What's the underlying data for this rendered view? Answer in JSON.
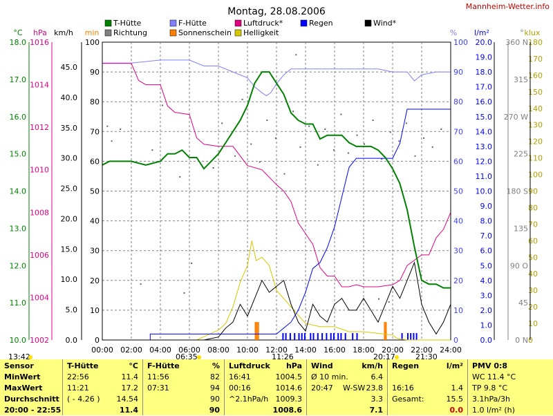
{
  "header": {
    "date": "Montag, 28.08.2006",
    "site": "Mannheim-Wetter.info"
  },
  "legend": [
    {
      "label": "T-Hütte",
      "color": "#008000"
    },
    {
      "label": "Richtung",
      "color": "#808080"
    },
    {
      "label": "F-Hütte",
      "color": "#8080ff"
    },
    {
      "label": "Sonnenschein",
      "color": "#ff8000"
    },
    {
      "label": "Luftdruck*",
      "color": "#e0007f"
    },
    {
      "label": "Helligkeit",
      "color": "#d4c800"
    },
    {
      "label": "Regen",
      "color": "#0000ff"
    },
    {
      "label": "Wind*",
      "color": "#000000"
    }
  ],
  "axis_units": {
    "temp": "°C",
    "press": "hPa",
    "wind": "km/h",
    "sun": "min",
    "hum": "%",
    "rain": "l/m²",
    "dir": "°",
    "lux": "klux"
  },
  "axes": {
    "temp": [
      "18.0",
      "17.0",
      "16.0",
      "15.0",
      "14.0",
      "13.0",
      "12.0",
      "11.0",
      "10.0"
    ],
    "press": [
      "1016",
      "1014",
      "1012",
      "1010",
      "1008",
      "1006",
      "1004",
      "1002"
    ],
    "wind": [
      "45.0",
      "40.0",
      "35.0",
      "30.0",
      "25.0",
      "20.0",
      "15.0",
      "10.0",
      "5.0",
      "0.0"
    ],
    "sun": [
      "100",
      "90",
      "80",
      "70",
      "60",
      "50",
      "40",
      "30",
      "20",
      "10",
      "0"
    ],
    "hum": [
      "100",
      "90",
      "80",
      "70",
      "60",
      "50",
      "40",
      "30",
      "20",
      "10",
      "0"
    ],
    "rain": [
      "20.0",
      "19.0",
      "18.0",
      "17.0",
      "16.0",
      "15.0",
      "14.0",
      "13.0",
      "12.0",
      "11.0",
      "10.0",
      "9.0",
      "8.0",
      "7.0",
      "6.0",
      "5.0",
      "4.0",
      "3.0",
      "2.0",
      "1.0",
      "0.0"
    ],
    "dir": [
      "360 N",
      "315",
      "270 W",
      "225",
      "180 S",
      "135",
      "90 O",
      "45",
      "0 N"
    ],
    "lux": [
      "180",
      "170",
      "160",
      "150",
      "140",
      "130",
      "120",
      "110",
      "100",
      "90",
      "80",
      "70",
      "60",
      "50",
      "40",
      "30",
      "20",
      "10",
      "0"
    ],
    "time": [
      "00:00",
      "02:00",
      "04:00",
      "06:00",
      "08:00",
      "10:00",
      "12:00",
      "14:00",
      "16:00",
      "18:00",
      "20:00",
      "22:00",
      "24:00"
    ]
  },
  "markers": {
    "now": "13:42",
    "sunrise": "06:35",
    "noon": "11:26",
    "sunset": "20:17",
    "moon": "21:30"
  },
  "chart_data": {
    "type": "line",
    "title": "Montag, 28.08.2006",
    "x_unit": "hours",
    "xlim": [
      0,
      24
    ],
    "series": [
      {
        "name": "T-Hütte",
        "unit": "°C",
        "ylim": [
          10,
          18
        ],
        "color": "#008000",
        "points": [
          [
            0,
            14.7
          ],
          [
            0.5,
            14.8
          ],
          [
            1,
            14.8
          ],
          [
            1.5,
            14.8
          ],
          [
            2,
            14.8
          ],
          [
            3,
            14.7
          ],
          [
            4,
            14.8
          ],
          [
            4.5,
            15.0
          ],
          [
            5,
            15.0
          ],
          [
            5.5,
            15.1
          ],
          [
            6,
            14.9
          ],
          [
            6.5,
            14.9
          ],
          [
            7,
            14.6
          ],
          [
            7.5,
            14.8
          ],
          [
            8,
            15.0
          ],
          [
            8.5,
            15.3
          ],
          [
            9,
            15.6
          ],
          [
            9.5,
            15.9
          ],
          [
            10,
            16.3
          ],
          [
            10.5,
            16.9
          ],
          [
            11,
            17.2
          ],
          [
            11.5,
            17.2
          ],
          [
            12,
            16.9
          ],
          [
            12.5,
            16.6
          ],
          [
            13,
            16.1
          ],
          [
            13.5,
            15.9
          ],
          [
            14,
            15.8
          ],
          [
            14.5,
            15.8
          ],
          [
            15,
            15.4
          ],
          [
            15.5,
            15.5
          ],
          [
            16,
            15.5
          ],
          [
            16.5,
            15.5
          ],
          [
            17,
            15.3
          ],
          [
            17.5,
            15.2
          ],
          [
            18,
            15.2
          ],
          [
            18.5,
            15.2
          ],
          [
            19,
            15.1
          ],
          [
            19.5,
            14.9
          ],
          [
            20,
            14.6
          ],
          [
            20.5,
            14.2
          ],
          [
            21,
            13.5
          ],
          [
            21.5,
            12.5
          ],
          [
            22,
            11.6
          ],
          [
            22.5,
            11.5
          ],
          [
            23,
            11.5
          ],
          [
            23.5,
            11.4
          ],
          [
            24,
            11.4
          ]
        ]
      },
      {
        "name": "F-Hütte",
        "unit": "%",
        "ylim": [
          0,
          100
        ],
        "color": "#8080ff",
        "points": [
          [
            0,
            93
          ],
          [
            2,
            93
          ],
          [
            4,
            94
          ],
          [
            6,
            94
          ],
          [
            7,
            92
          ],
          [
            8,
            92
          ],
          [
            9,
            90
          ],
          [
            10,
            88
          ],
          [
            10.5,
            85
          ],
          [
            11,
            83
          ],
          [
            11.3,
            82
          ],
          [
            11.6,
            83
          ],
          [
            12,
            86
          ],
          [
            12.5,
            89
          ],
          [
            13,
            91
          ],
          [
            14,
            91
          ],
          [
            15,
            91
          ],
          [
            16,
            91
          ],
          [
            17,
            91
          ],
          [
            18,
            91
          ],
          [
            19,
            91
          ],
          [
            20,
            90
          ],
          [
            21,
            90
          ],
          [
            21.5,
            87
          ],
          [
            22,
            89
          ],
          [
            23,
            90
          ],
          [
            24,
            90
          ]
        ]
      },
      {
        "name": "Luftdruck*",
        "unit": "hPa",
        "ylim": [
          1002,
          1016
        ],
        "color": "#e0007f",
        "points": [
          [
            0,
            1015.0
          ],
          [
            2,
            1015.0
          ],
          [
            2.5,
            1014.2
          ],
          [
            3,
            1014.0
          ],
          [
            4,
            1014.0
          ],
          [
            4.5,
            1013.0
          ],
          [
            5,
            1012.7
          ],
          [
            6,
            1012.6
          ],
          [
            6.5,
            1011.5
          ],
          [
            7,
            1011.2
          ],
          [
            8,
            1011.1
          ],
          [
            9,
            1011.1
          ],
          [
            10,
            1010.2
          ],
          [
            11,
            1010.0
          ],
          [
            12,
            1009.3
          ],
          [
            12.5,
            1009.0
          ],
          [
            13,
            1008.5
          ],
          [
            13.5,
            1007.5
          ],
          [
            14,
            1007.0
          ],
          [
            14.5,
            1006.5
          ],
          [
            15,
            1005.4
          ],
          [
            15.5,
            1005.0
          ],
          [
            16,
            1005.0
          ],
          [
            16.5,
            1004.5
          ],
          [
            17,
            1004.5
          ],
          [
            17.5,
            1004.6
          ],
          [
            18,
            1004.5
          ],
          [
            19,
            1004.5
          ],
          [
            20,
            1004.6
          ],
          [
            20.5,
            1004.8
          ],
          [
            21,
            1005.5
          ],
          [
            22,
            1006.0
          ],
          [
            22.5,
            1006.0
          ],
          [
            23,
            1006.8
          ],
          [
            23.5,
            1007.2
          ],
          [
            24,
            1008.0
          ]
        ]
      },
      {
        "name": "Regen",
        "unit": "l/m²",
        "ylim": [
          0,
          20
        ],
        "color": "#0000ff",
        "points": [
          [
            0,
            0
          ],
          [
            3.3,
            0
          ],
          [
            3.3,
            0.4
          ],
          [
            12,
            0.4
          ],
          [
            12.5,
            0.8
          ],
          [
            13,
            1.2
          ],
          [
            13.5,
            2.0
          ],
          [
            14,
            3.2
          ],
          [
            14.5,
            4.8
          ],
          [
            15,
            5.2
          ],
          [
            15.5,
            6.2
          ],
          [
            16,
            7.6
          ],
          [
            16.5,
            9.6
          ],
          [
            17,
            11.6
          ],
          [
            17.5,
            12.2
          ],
          [
            18,
            12.2
          ],
          [
            20,
            12.2
          ],
          [
            20.5,
            13.2
          ],
          [
            21,
            15.5
          ],
          [
            22,
            15.5
          ],
          [
            24,
            15.5
          ]
        ]
      },
      {
        "name": "Wind*",
        "unit": "km/h",
        "ylim": [
          0,
          50
        ],
        "color": "#000000",
        "points": [
          [
            0,
            0
          ],
          [
            7,
            0
          ],
          [
            8,
            0.5
          ],
          [
            8.5,
            2
          ],
          [
            9,
            3
          ],
          [
            9.5,
            6
          ],
          [
            10,
            4
          ],
          [
            10.5,
            7
          ],
          [
            11,
            10
          ],
          [
            11.5,
            8
          ],
          [
            12,
            9
          ],
          [
            12.5,
            10
          ],
          [
            13,
            6
          ],
          [
            13.5,
            3
          ],
          [
            14,
            1.5
          ],
          [
            14.5,
            6
          ],
          [
            15,
            4
          ],
          [
            15.5,
            3
          ],
          [
            16,
            6
          ],
          [
            16.5,
            7
          ],
          [
            17,
            5
          ],
          [
            17.5,
            5
          ],
          [
            18,
            7
          ],
          [
            18.5,
            5
          ],
          [
            19,
            3
          ],
          [
            19.5,
            6
          ],
          [
            20,
            9
          ],
          [
            20.5,
            7
          ],
          [
            21,
            10
          ],
          [
            21.5,
            13
          ],
          [
            22,
            6
          ],
          [
            22.5,
            3
          ],
          [
            23,
            1
          ],
          [
            23.5,
            3
          ],
          [
            24,
            6
          ]
        ]
      },
      {
        "name": "Helligkeit",
        "unit": "klux",
        "ylim": [
          0,
          180
        ],
        "color": "#d4c800",
        "points": [
          [
            0,
            0
          ],
          [
            6.5,
            0
          ],
          [
            7,
            2
          ],
          [
            7.5,
            4
          ],
          [
            8,
            6
          ],
          [
            8.5,
            10
          ],
          [
            9,
            20
          ],
          [
            9.5,
            35
          ],
          [
            10,
            45
          ],
          [
            10.3,
            60
          ],
          [
            10.6,
            48
          ],
          [
            11,
            50
          ],
          [
            11.5,
            45
          ],
          [
            12,
            30
          ],
          [
            12.5,
            25
          ],
          [
            13,
            20
          ],
          [
            13.5,
            15
          ],
          [
            14,
            10
          ],
          [
            15,
            8
          ],
          [
            16,
            8
          ],
          [
            17,
            5
          ],
          [
            18,
            5
          ],
          [
            19,
            4
          ],
          [
            20,
            3
          ],
          [
            20.3,
            1
          ],
          [
            21,
            0
          ],
          [
            24,
            0
          ]
        ]
      }
    ]
  },
  "panel": {
    "sensor": {
      "title": "Sensor",
      "rows": [
        "MinWert",
        "MaxWert",
        "Durchschnitt",
        "20:00 - 22:55"
      ]
    },
    "t_huette": {
      "title": "T-Hütte",
      "unit": "°C",
      "min_time": "22:56",
      "min": "11.4",
      "max_time": "11:21",
      "max": "17.2",
      "avg_note": "( - 4.26 )",
      "avg": "14.54",
      "last": "11.4"
    },
    "f_huette": {
      "title": "F-Hütte",
      "unit": "%",
      "min_time": "11:56",
      "min": "82",
      "max_time": "07:31",
      "max": "94",
      "avg": "90",
      "last": "90"
    },
    "luftdruck": {
      "title": "Luftdruck",
      "unit": "hPa",
      "min_time": "16:41",
      "min": "1004.5",
      "max_time": "00:16",
      "max": "1014.6",
      "trend": "^2.1hPa/h",
      "avg": "1009.3",
      "last": "1008.6"
    },
    "wind": {
      "title": "Wind",
      "unit": "km/h",
      "avg10_label": "Ø 10 min.",
      "avg10": "6.4",
      "max_time": "20:47",
      "max_dir": "W-SW",
      "max": "23.8",
      "avg": "3.3",
      "last": "7.1"
    },
    "regen": {
      "title": "Regen",
      "unit": "l/m²",
      "max_time": "16:16",
      "max": "1.4",
      "total_label": "Gesamt:",
      "total": "15.5",
      "last": "0.0"
    },
    "pmv": {
      "title": "PMV 0:8",
      "wc": "WC 11.4 °C",
      "tp": "TP 9.8 °C",
      "trend": "3.1hPa/3h",
      "extra": "1.0 l/m² (h)"
    }
  }
}
